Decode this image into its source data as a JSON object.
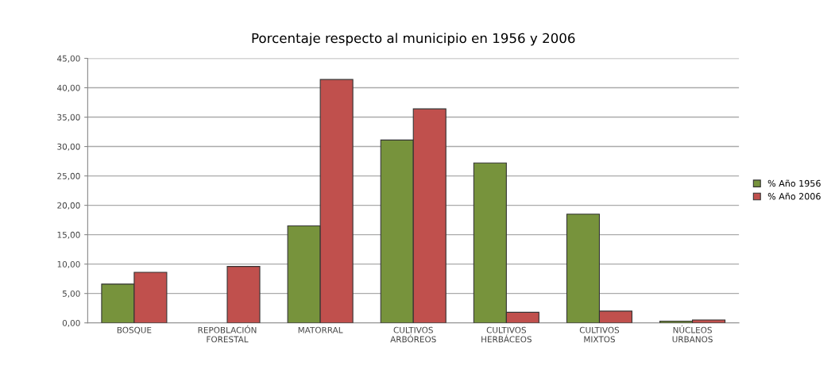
{
  "chart_data": {
    "type": "bar",
    "title": "Porcentaje respecto al municipio en 1956 y 2006",
    "categories": [
      "BOSQUE",
      "REPOBLACIÓN\nFORESTAL",
      "MATORRAL",
      "CULTIVOS\nARBÓREOS",
      "CULTIVOS\nHERBÁCEOS",
      "CULTIVOS\nMIXTOS",
      "NÚCLEOS\nURBANOS"
    ],
    "series": [
      {
        "name": "% Año 1956",
        "color": "#77933c",
        "values": [
          6.6,
          0,
          16.5,
          31.1,
          27.2,
          18.5,
          0.3
        ]
      },
      {
        "name": "% Año 2006",
        "color": "#c0504d",
        "values": [
          8.6,
          9.6,
          41.4,
          36.4,
          1.8,
          2.0,
          0.5
        ]
      }
    ],
    "ylim": [
      0,
      45
    ],
    "yticks": [
      {
        "value": 0,
        "label": "0,00"
      },
      {
        "value": 5,
        "label": "5,00"
      },
      {
        "value": 10,
        "label": "10,00"
      },
      {
        "value": 15,
        "label": "15,00"
      },
      {
        "value": 20,
        "label": "20,00"
      },
      {
        "value": 25,
        "label": "25,00"
      },
      {
        "value": 30,
        "label": "30,00"
      },
      {
        "value": 35,
        "label": "35,00"
      },
      {
        "value": 40,
        "label": "40,00"
      },
      {
        "value": 45,
        "label": "45,00"
      }
    ],
    "grid": "y",
    "legend": "right"
  }
}
